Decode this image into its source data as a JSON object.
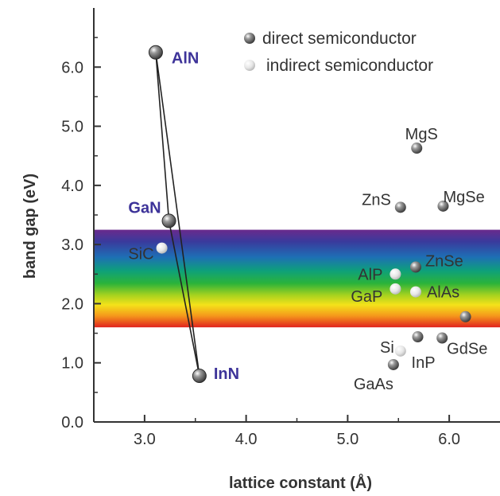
{
  "chart_data": {
    "type": "scatter",
    "xlabel": "lattice constant (Å)",
    "ylabel": "band gap (eV)",
    "xlim": [
      2.5,
      6.5
    ],
    "ylim": [
      0.0,
      7.0
    ],
    "xticks": [
      "3.0",
      "4.0",
      "5.0",
      "6.0"
    ],
    "yticks": [
      "0.0",
      "1.0",
      "2.0",
      "3.0",
      "4.0",
      "5.0",
      "6.0"
    ],
    "grid": false,
    "legend_position": "top-right",
    "legend": [
      {
        "label": "direct semiconductor",
        "kind": "direct"
      },
      {
        "label": "indirect semiconductor",
        "kind": "indirect"
      }
    ],
    "visible_spectrum_band": [
      1.6,
      3.25
    ],
    "series": [
      {
        "name": "direct semiconductor",
        "points": [
          {
            "label": "AlN",
            "x": 3.11,
            "y": 6.25
          },
          {
            "label": "GaN",
            "x": 3.24,
            "y": 3.4
          },
          {
            "label": "InN",
            "x": 3.54,
            "y": 0.78
          },
          {
            "label": "MgS",
            "x": 5.68,
            "y": 4.63
          },
          {
            "label": "ZnS",
            "x": 5.52,
            "y": 3.63
          },
          {
            "label": "MgSe",
            "x": 5.94,
            "y": 3.65
          },
          {
            "label": "ZnSe",
            "x": 5.67,
            "y": 2.62
          },
          {
            "label": "GaAs",
            "x": 5.45,
            "y": 0.97
          },
          {
            "label": "InP",
            "x": 5.69,
            "y": 1.44
          },
          {
            "label": "GdSe",
            "x": 5.93,
            "y": 1.42
          },
          {
            "label": "",
            "x": 6.16,
            "y": 1.78
          }
        ]
      },
      {
        "name": "indirect semiconductor",
        "points": [
          {
            "label": "SiC",
            "x": 3.17,
            "y": 2.94
          },
          {
            "label": "AlP",
            "x": 5.47,
            "y": 2.5
          },
          {
            "label": "GaP",
            "x": 5.47,
            "y": 2.25
          },
          {
            "label": "AlAs",
            "x": 5.67,
            "y": 2.2
          },
          {
            "label": "Si",
            "x": 5.52,
            "y": 1.2
          }
        ]
      }
    ],
    "connector_lines": [
      [
        "AlN",
        "GaN"
      ],
      [
        "GaN",
        "InN"
      ],
      [
        "InN",
        "AlN"
      ]
    ]
  },
  "colors": {
    "highlight_label": "#3d3399",
    "default_label": "#333333",
    "legend_direct": "#555555",
    "legend_indirect": "#dddddd"
  }
}
